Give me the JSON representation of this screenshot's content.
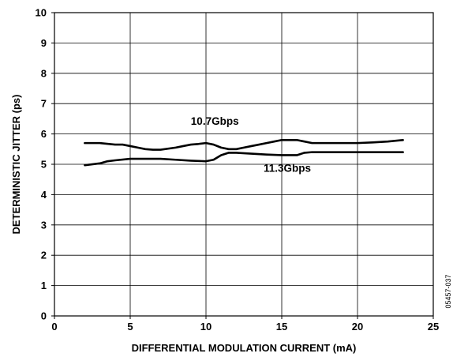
{
  "chart_data": {
    "type": "line",
    "title": "",
    "xlabel": "DIFFERENTIAL MODULATION CURRENT (mA)",
    "ylabel": "DETERMINISTIC JITTER (ps)",
    "xlim": [
      0,
      25
    ],
    "ylim": [
      0,
      10
    ],
    "x_ticks": [
      "0",
      "5",
      "10",
      "15",
      "20",
      "25"
    ],
    "y_ticks": [
      "0",
      "1",
      "2",
      "3",
      "4",
      "5",
      "6",
      "7",
      "8",
      "9",
      "10"
    ],
    "grid": true,
    "legend": "none (series labeled directly on plot)",
    "series": [
      {
        "name": "10.7Gbps",
        "x": [
          2,
          3,
          4,
          4.5,
          5,
          5.5,
          6,
          6.5,
          7,
          8,
          8.5,
          9,
          9.5,
          10,
          10.5,
          11,
          11.5,
          12,
          12.5,
          13,
          13.5,
          14,
          14.5,
          15,
          15.5,
          16,
          16.5,
          17,
          18,
          19,
          20,
          21,
          22,
          23
        ],
        "y": [
          5.7,
          5.7,
          5.65,
          5.65,
          5.6,
          5.55,
          5.5,
          5.48,
          5.48,
          5.55,
          5.6,
          5.65,
          5.67,
          5.7,
          5.65,
          5.55,
          5.5,
          5.5,
          5.55,
          5.6,
          5.65,
          5.7,
          5.75,
          5.8,
          5.8,
          5.8,
          5.75,
          5.7,
          5.7,
          5.7,
          5.7,
          5.72,
          5.75,
          5.8
        ]
      },
      {
        "name": "11.3Gbps",
        "x": [
          2,
          3,
          3.5,
          4,
          5,
          6,
          7,
          8,
          9,
          10,
          10.5,
          11,
          11.5,
          12,
          13,
          14,
          15,
          16,
          16.5,
          17,
          18,
          19,
          20,
          21,
          22,
          23
        ],
        "y": [
          4.97,
          5.03,
          5.1,
          5.13,
          5.18,
          5.18,
          5.18,
          5.15,
          5.12,
          5.1,
          5.15,
          5.3,
          5.38,
          5.38,
          5.35,
          5.32,
          5.3,
          5.3,
          5.38,
          5.4,
          5.4,
          5.4,
          5.4,
          5.4,
          5.4,
          5.4
        ]
      }
    ],
    "annotations": [
      {
        "text": "10.7Gbps",
        "x": 9,
        "y": 6.3
      },
      {
        "text": "11.3Gbps",
        "x": 13.8,
        "y": 4.75
      }
    ],
    "side_code": "05457-037"
  }
}
